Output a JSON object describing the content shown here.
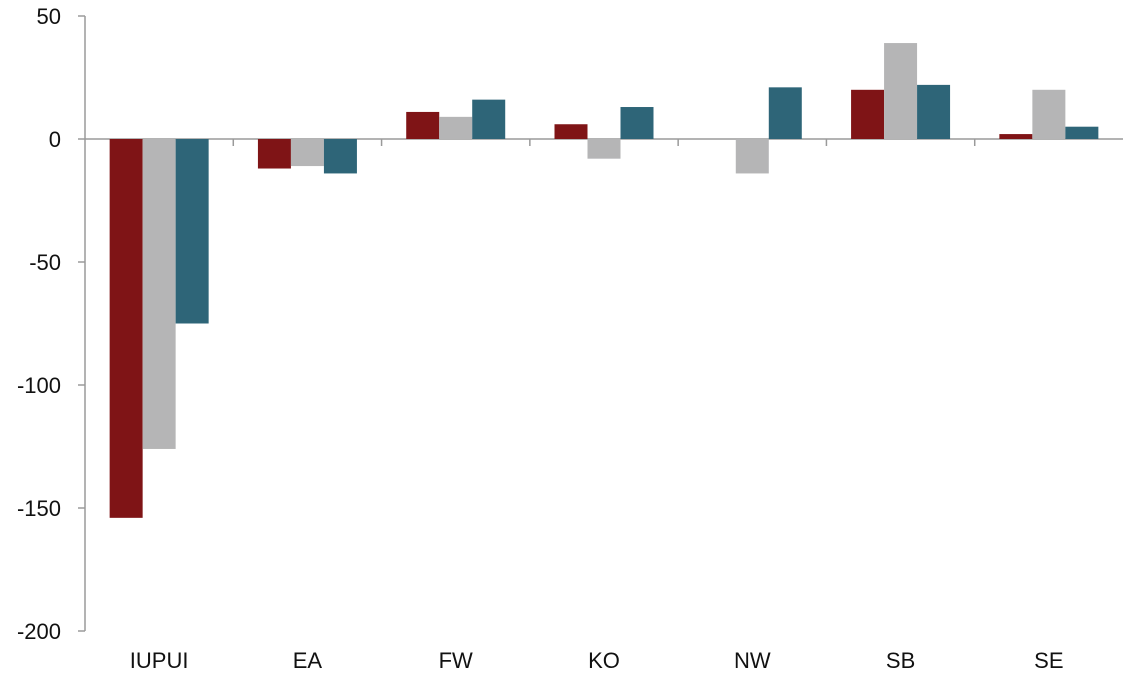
{
  "chart_data": {
    "type": "bar",
    "title": "",
    "xlabel": "",
    "ylabel": "",
    "categories": [
      "IUPUI",
      "EA",
      "FW",
      "KO",
      "NW",
      "SB",
      "SE"
    ],
    "series": [
      {
        "color": "#7f1416",
        "values": [
          -154,
          -12,
          11,
          6,
          0,
          20,
          2
        ]
      },
      {
        "color": "#b5b5b6",
        "values": [
          -126,
          -11,
          9,
          -8,
          -14,
          39,
          20
        ]
      },
      {
        "color": "#2e6578",
        "values": [
          -75,
          -14,
          16,
          13,
          21,
          22,
          5
        ]
      }
    ],
    "ylim": [
      -200,
      50
    ],
    "yticks": [
      50,
      0,
      -50,
      -100,
      -150,
      -200
    ],
    "grid": false,
    "legend": "none",
    "axis_color": "#9a9a9a"
  }
}
